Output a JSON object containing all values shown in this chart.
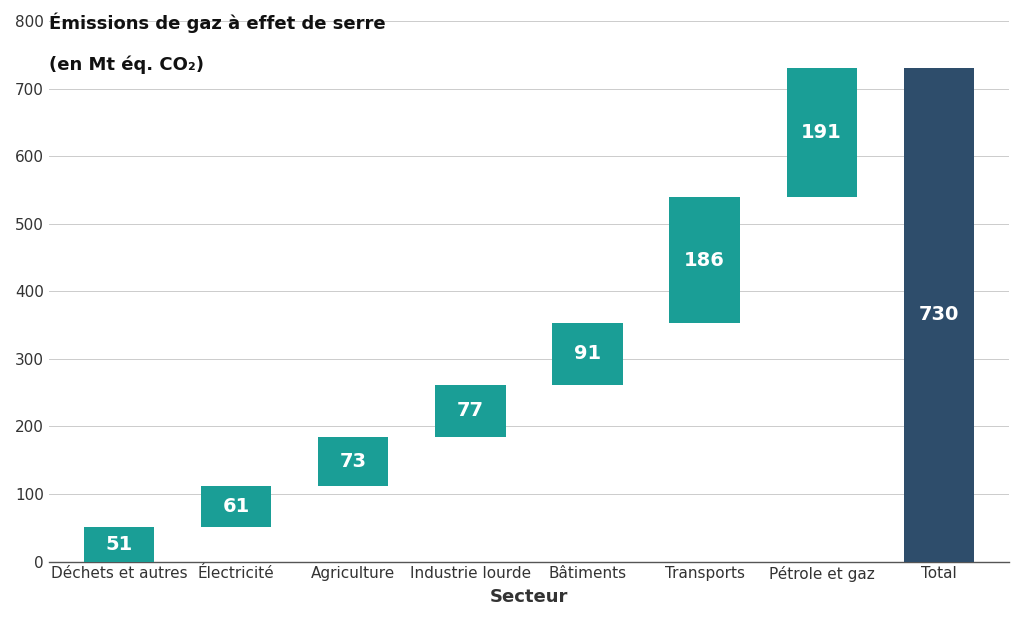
{
  "categories": [
    "Déchets et autres",
    "Électricité",
    "Agriculture",
    "Industrie lourde",
    "Bâtiments",
    "Transports",
    "Pétrole et gaz",
    "Total"
  ],
  "values": [
    51,
    61,
    73,
    77,
    91,
    186,
    191,
    730
  ],
  "bottoms": [
    0,
    51,
    112,
    185,
    262,
    353,
    539,
    0
  ],
  "bar_colors": [
    "#1a9e96",
    "#1a9e96",
    "#1a9e96",
    "#1a9e96",
    "#1a9e96",
    "#1a9e96",
    "#1a9e96",
    "#2e4d6b"
  ],
  "label_color": "#ffffff",
  "title_line1": "Émissions de gaz à effet de serre",
  "title_line2": "(en Mt éq. CO₂)",
  "xlabel": "Secteur",
  "ylim": [
    0,
    800
  ],
  "yticks": [
    0,
    100,
    200,
    300,
    400,
    500,
    600,
    700,
    800
  ],
  "title_fontsize": 13,
  "tick_fontsize": 11,
  "xlabel_fontsize": 13,
  "background_color": "#ffffff",
  "bar_width": 0.6,
  "value_label_fontsize": 14,
  "axis_color": "#555555",
  "grid_color": "#cccccc",
  "text_color": "#333333"
}
